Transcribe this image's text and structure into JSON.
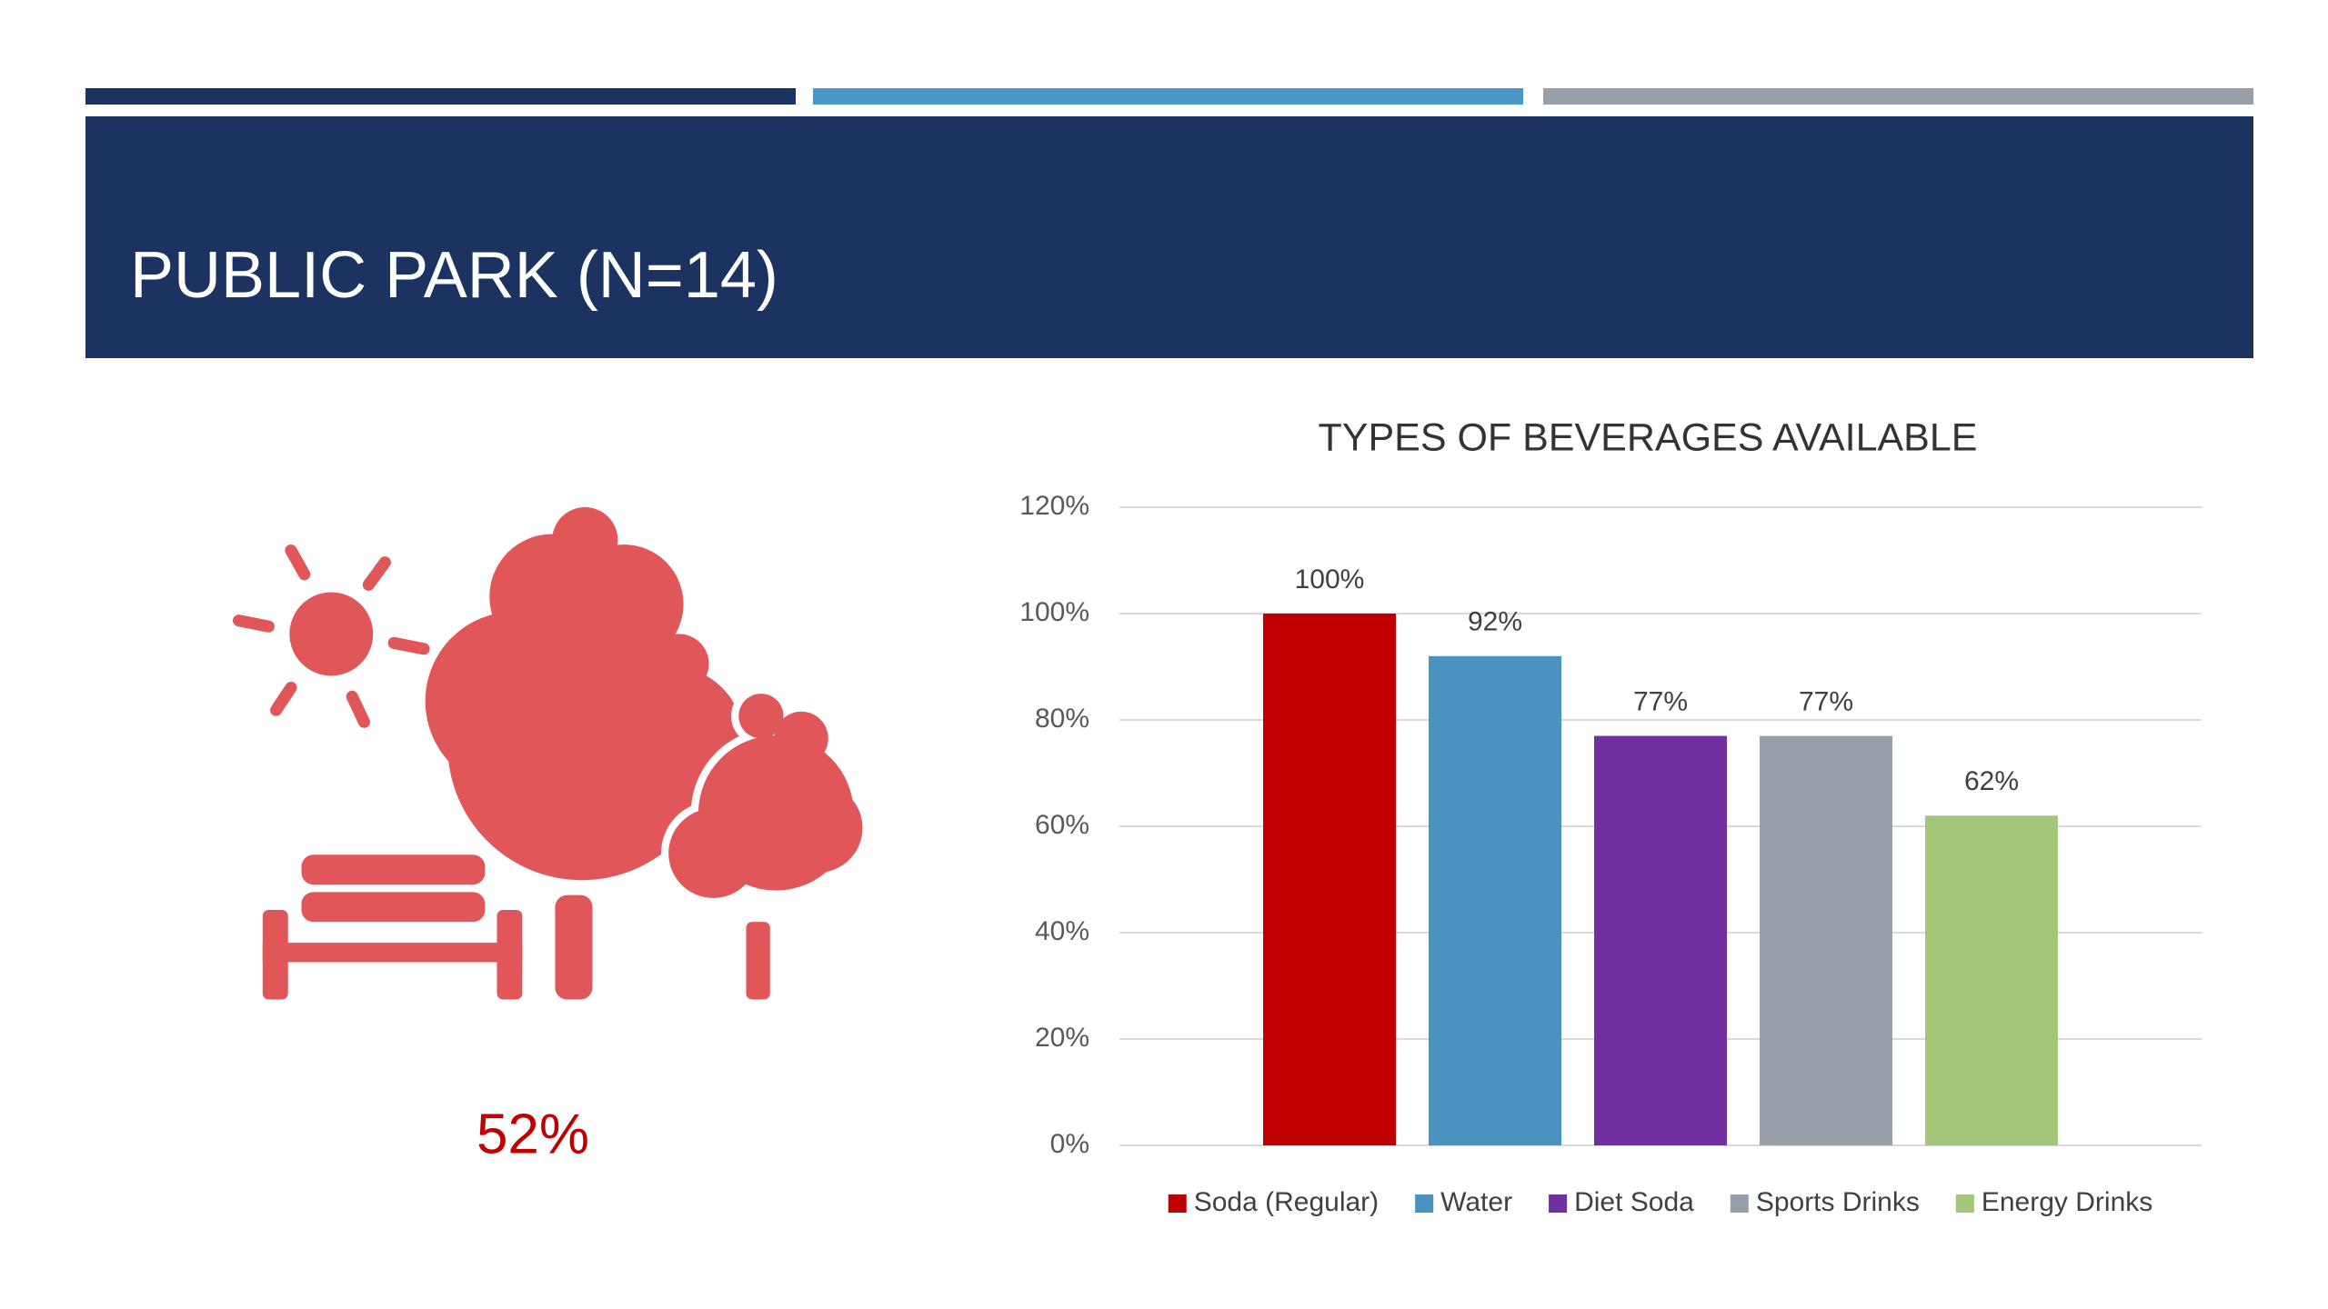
{
  "header": {
    "title": "PUBLIC PARK (N=14)"
  },
  "stat": {
    "text": "52%"
  },
  "chart_data": {
    "type": "bar",
    "title": "TYPES OF BEVERAGES AVAILABLE",
    "categories": [
      null
    ],
    "series": [
      {
        "name": "Soda (Regular)",
        "color": "#c00000",
        "values": [
          100
        ],
        "value_labels": [
          "100%"
        ]
      },
      {
        "name": "Water",
        "color": "#4a93c0",
        "values": [
          92
        ],
        "value_labels": [
          "92%"
        ]
      },
      {
        "name": "Diet Soda",
        "color": "#7030a0",
        "values": [
          77
        ],
        "value_labels": [
          "77%"
        ]
      },
      {
        "name": "Sports Drinks",
        "color": "#97a0a8",
        "values": [
          77
        ],
        "value_labels": [
          "77%"
        ]
      },
      {
        "name": "Energy Drinks",
        "color": "#a2c77b",
        "values": [
          62
        ],
        "value_labels": [
          "62%"
        ]
      }
    ],
    "ylim": [
      0,
      120
    ],
    "yticks": [
      {
        "value": 0,
        "label": "0%"
      },
      {
        "value": 20,
        "label": "20%"
      },
      {
        "value": 40,
        "label": "40%"
      },
      {
        "value": 60,
        "label": "60%"
      },
      {
        "value": 80,
        "label": "80%"
      },
      {
        "value": 100,
        "label": "100%"
      },
      {
        "value": 120,
        "label": "120%"
      }
    ],
    "grid": true,
    "legend": "bottom"
  }
}
